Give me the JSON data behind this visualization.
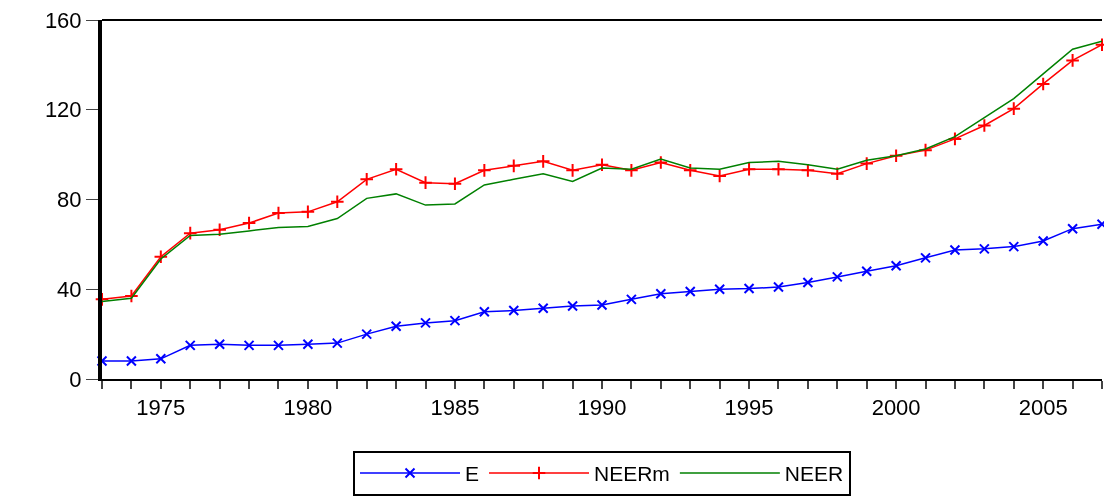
{
  "chart_data": {
    "type": "line",
    "x": [
      1973,
      1974,
      1975,
      1976,
      1977,
      1978,
      1979,
      1980,
      1981,
      1982,
      1983,
      1984,
      1985,
      1986,
      1987,
      1988,
      1989,
      1990,
      1991,
      1992,
      1993,
      1994,
      1995,
      1996,
      1997,
      1998,
      1999,
      2000,
      2001,
      2002,
      2003,
      2004,
      2005,
      2006,
      2007
    ],
    "series": [
      {
        "name": "E",
        "color": "#0000ff",
        "marker": "x",
        "values": [
          8,
          8,
          9,
          15,
          15.5,
          15,
          15,
          15.5,
          16,
          20,
          23.5,
          25,
          26,
          30,
          30.5,
          31.5,
          32.5,
          33,
          35.5,
          38,
          39,
          40,
          40.3,
          41,
          43,
          45.5,
          48,
          50.5,
          54,
          57.5,
          58,
          59,
          61.5,
          67,
          69
        ]
      },
      {
        "name": "NEERm",
        "color": "#ff0000",
        "marker": "cross",
        "values": [
          35.5,
          37,
          54.5,
          65,
          66.5,
          69.5,
          74,
          74.5,
          79,
          89,
          93.5,
          87.5,
          87,
          93,
          95,
          97,
          93,
          95.5,
          93,
          96.5,
          93,
          90.5,
          93.5,
          93.5,
          93,
          91.5,
          96,
          99.5,
          102,
          107,
          113,
          120.5,
          131.5,
          142,
          149
        ]
      },
      {
        "name": "NEER",
        "color": "#008000",
        "marker": "none",
        "values": [
          34.5,
          36,
          53.5,
          64,
          64.5,
          66,
          67.5,
          68,
          71.5,
          80.5,
          82.5,
          77.5,
          78,
          86.5,
          89,
          91.5,
          88,
          94,
          93.5,
          98,
          94,
          93.5,
          96.5,
          97,
          95.5,
          93.5,
          97.5,
          99.5,
          102.5,
          108,
          116.5,
          125,
          136,
          147,
          150.5
        ]
      }
    ],
    "xlim": [
      1973,
      2007
    ],
    "xticks": [
      {
        "value": 1973,
        "label": null
      },
      {
        "value": 1974,
        "label": null
      },
      1975,
      {
        "value": 1976,
        "label": null
      },
      {
        "value": 1977,
        "label": null
      },
      {
        "value": 1978,
        "label": null
      },
      {
        "value": 1979,
        "label": null
      },
      1980,
      {
        "value": 1981,
        "label": null
      },
      {
        "value": 1982,
        "label": null
      },
      {
        "value": 1983,
        "label": null
      },
      {
        "value": 1984,
        "label": null
      },
      1985,
      {
        "value": 1986,
        "label": null
      },
      {
        "value": 1987,
        "label": null
      },
      {
        "value": 1988,
        "label": null
      },
      {
        "value": 1989,
        "label": null
      },
      1990,
      {
        "value": 1991,
        "label": null
      },
      {
        "value": 1992,
        "label": null
      },
      {
        "value": 1993,
        "label": null
      },
      {
        "value": 1994,
        "label": null
      },
      1995,
      {
        "value": 1996,
        "label": null
      },
      {
        "value": 1997,
        "label": null
      },
      {
        "value": 1998,
        "label": null
      },
      {
        "value": 1999,
        "label": null
      },
      2000,
      {
        "value": 2001,
        "label": null
      },
      {
        "value": 2002,
        "label": null
      },
      {
        "value": 2003,
        "label": null
      },
      {
        "value": 2004,
        "label": null
      },
      2005,
      {
        "value": 2006,
        "label": null
      },
      {
        "value": 2007,
        "label": null
      }
    ],
    "ylim": [
      0,
      160
    ],
    "yticks": [
      0,
      40,
      80,
      120,
      160
    ],
    "grid": false,
    "legend": "bottom",
    "line_style": "solid"
  }
}
